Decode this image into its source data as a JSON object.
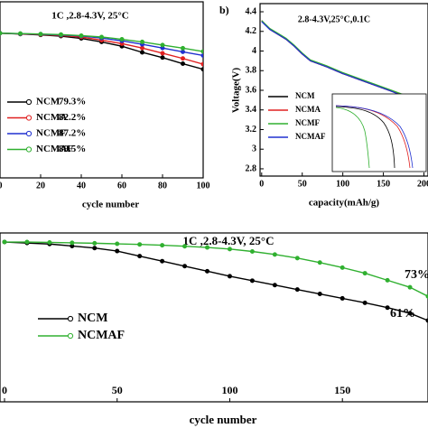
{
  "chart_data": [
    {
      "type": "line",
      "title": "1C ,2.8-4.3V, 25°C",
      "xlabel": "cycle number",
      "markers": true,
      "x": [
        0,
        10,
        20,
        30,
        40,
        50,
        60,
        70,
        80,
        90,
        100
      ],
      "xlim": [
        0,
        100
      ],
      "xticks": [
        0,
        20,
        40,
        60,
        80,
        100
      ],
      "ylim": [
        17,
        118
      ],
      "series": [
        {
          "name": "NCM",
          "color": "#000000",
          "label": "79.3%",
          "label_color": "#000000",
          "values": [
            100,
            99.5,
            99,
            98.3,
            97,
            95,
            92.5,
            89,
            86,
            82.5,
            79.3
          ]
        },
        {
          "name": "NCMA",
          "color": "#e02020",
          "label": "82.2%",
          "label_color": "#a01818",
          "values": [
            100,
            99.6,
            99.2,
            98.7,
            97.8,
            96,
            94,
            91.5,
            88.5,
            85.5,
            82.2
          ]
        },
        {
          "name": "NCMF",
          "color": "#2030d0",
          "label": "87.2%",
          "label_color": "#2030b0",
          "values": [
            100,
            99.7,
            99.4,
            99,
            98.4,
            97.2,
            95.6,
            93.6,
            91.5,
            89.3,
            87.2
          ]
        },
        {
          "name": "NCMAF",
          "color": "#30b030",
          "label": "89.5%",
          "label_color": "#30a030",
          "values": [
            100,
            99.8,
            99.5,
            99.2,
            98.6,
            97.8,
            96.5,
            95,
            93.2,
            91.4,
            89.5
          ]
        }
      ]
    },
    {
      "type": "line",
      "panel_label": "b)",
      "title": "2.8-4.3V,25°C,0.1C",
      "xlabel": "capacity(mAh/g)",
      "ylabel": "Voltage(V)",
      "markers": false,
      "x": [
        0,
        10,
        20,
        30,
        40,
        50,
        60,
        80,
        100,
        120,
        140,
        160,
        180,
        200
      ],
      "xlim": [
        -2,
        205
      ],
      "xticks": [
        0,
        50,
        100,
        150,
        200
      ],
      "ylim": [
        2.726,
        4.483
      ],
      "yticks": [
        2.8,
        3.0,
        3.2,
        3.4,
        3.6,
        3.8,
        4.0,
        4.2,
        4.4
      ],
      "series": [
        {
          "name": "NCM",
          "color": "#000000",
          "values": [
            4.31,
            4.22,
            4.17,
            4.12,
            4.05,
            3.97,
            3.9,
            3.84,
            3.77,
            3.71,
            3.65,
            3.59,
            3.53,
            3.44
          ]
        },
        {
          "name": "NCMA",
          "color": "#e02020",
          "values": [
            4.31,
            4.22,
            4.17,
            4.12,
            4.05,
            3.97,
            3.9,
            3.84,
            3.77,
            3.71,
            3.65,
            3.59,
            3.53,
            3.45
          ]
        },
        {
          "name": "NCMF",
          "color": "#30b030",
          "values": [
            4.31,
            4.23,
            4.18,
            4.13,
            4.06,
            3.98,
            3.91,
            3.85,
            3.78,
            3.72,
            3.66,
            3.6,
            3.54,
            3.46
          ]
        },
        {
          "name": "NCMAF",
          "color": "#2030d0",
          "values": [
            4.3,
            4.22,
            4.17,
            4.12,
            4.05,
            3.97,
            3.9,
            3.84,
            3.77,
            3.71,
            3.65,
            3.59,
            3.52,
            3.44
          ]
        }
      ]
    },
    {
      "type": "line",
      "title": "1C ,2.8-4.3V, 25°C",
      "xlabel": "cycle number",
      "markers": true,
      "x": [
        0,
        10,
        20,
        30,
        40,
        50,
        60,
        70,
        80,
        90,
        100,
        110,
        120,
        130,
        140,
        150,
        160,
        170,
        180,
        188
      ],
      "xlim": [
        -2,
        188
      ],
      "xticks": [
        0,
        50,
        100,
        150
      ],
      "ylim": [
        20.6,
        104.5
      ],
      "series": [
        {
          "name": "NCM",
          "color": "#000000",
          "label": "61%",
          "label_color": "#000000",
          "values": [
            100,
            99.5,
            99,
            98,
            97,
            95.5,
            93,
            90.5,
            88,
            85.5,
            83,
            80.8,
            78.6,
            76.4,
            74.2,
            72,
            69.8,
            67.4,
            64.6,
            61
          ]
        },
        {
          "name": "NCMAF",
          "color": "#30b030",
          "label": "73%",
          "label_color": "#30a030",
          "values": [
            100,
            100,
            99.8,
            99.6,
            99.4,
            99.1,
            98.8,
            98.4,
            97.9,
            97.3,
            96.5,
            95.3,
            93.8,
            92,
            89.8,
            87.3,
            84.5,
            81,
            77.5,
            73
          ]
        }
      ]
    }
  ]
}
